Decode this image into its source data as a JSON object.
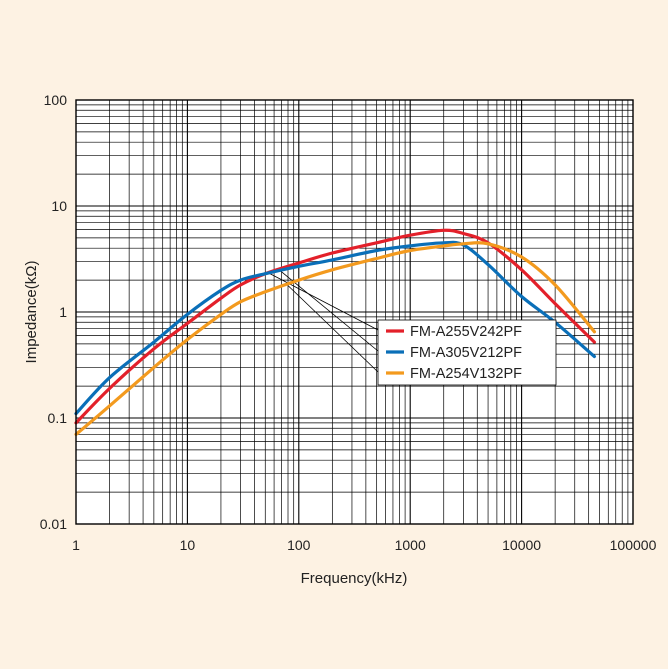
{
  "background_color": "#fdf2e3",
  "chart_data": {
    "type": "line",
    "xlabel": "Frequency(kHz)",
    "ylabel": "Impedance(kΩ)",
    "x_scale": "log",
    "y_scale": "log",
    "xlim": [
      1,
      100000
    ],
    "ylim": [
      0.01,
      100
    ],
    "x_ticks": [
      1,
      10,
      100,
      1000,
      10000,
      100000
    ],
    "x_tick_labels": [
      "1",
      "10",
      "100",
      "1000",
      "10000",
      "100000"
    ],
    "y_ticks": [
      0.01,
      0.1,
      1,
      10,
      100
    ],
    "y_tick_labels": [
      "0.01",
      "0.1",
      "1",
      "10",
      "100"
    ],
    "grid": true,
    "legend_position": "center-right",
    "series": [
      {
        "name": "FM-A255V242PF",
        "color": "#e3202a",
        "x": [
          1,
          2,
          5,
          10,
          20,
          30,
          50,
          100,
          200,
          500,
          1000,
          2000,
          3000,
          5000,
          10000,
          20000,
          45000
        ],
        "y": [
          0.09,
          0.19,
          0.45,
          0.78,
          1.35,
          1.8,
          2.3,
          2.9,
          3.6,
          4.5,
          5.3,
          5.9,
          5.5,
          4.5,
          2.5,
          1.2,
          0.52
        ]
      },
      {
        "name": "FM-A305V212PF",
        "color": "#0a6fb8",
        "x": [
          1,
          2,
          5,
          10,
          20,
          30,
          50,
          100,
          200,
          500,
          1000,
          2000,
          3000,
          5000,
          10000,
          20000,
          45000
        ],
        "y": [
          0.11,
          0.24,
          0.52,
          0.95,
          1.6,
          2.0,
          2.3,
          2.7,
          3.1,
          3.8,
          4.2,
          4.5,
          4.3,
          2.8,
          1.4,
          0.8,
          0.38
        ]
      },
      {
        "name": "FM-A254V132PF",
        "color": "#f39a1e",
        "x": [
          1,
          2,
          5,
          10,
          20,
          30,
          50,
          100,
          200,
          500,
          1000,
          2000,
          3000,
          5000,
          10000,
          20000,
          45000
        ],
        "y": [
          0.07,
          0.13,
          0.3,
          0.55,
          0.95,
          1.25,
          1.55,
          2.0,
          2.5,
          3.2,
          3.8,
          4.2,
          4.4,
          4.4,
          3.3,
          1.8,
          0.65
        ]
      }
    ]
  }
}
